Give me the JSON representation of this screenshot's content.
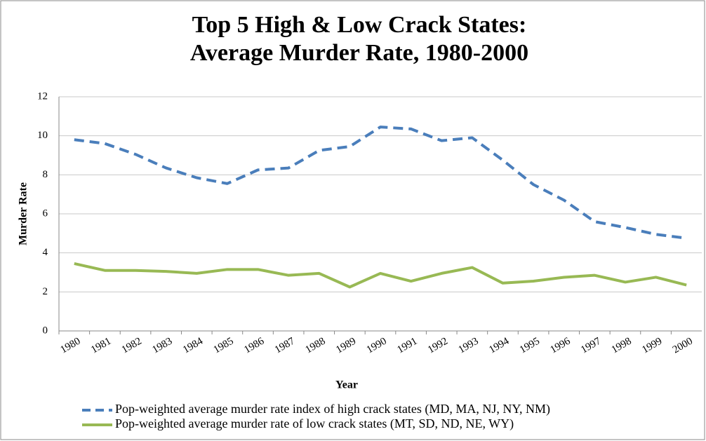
{
  "chart_data": {
    "type": "line",
    "title": [
      "Top 5 High & Low Crack States:",
      "Average Murder Rate, 1980-2000"
    ],
    "x_label": "Year",
    "y_label": "Murder Rate",
    "categories": [
      "1980",
      "1981",
      "1982",
      "1983",
      "1984",
      "1985",
      "1986",
      "1987",
      "1988",
      "1989",
      "1990",
      "1991",
      "1992",
      "1993",
      "1994",
      "1995",
      "1996",
      "1997",
      "1998",
      "1999",
      "2000"
    ],
    "series": [
      {
        "name": "Pop-weighted average murder rate index of high crack states (MD, MA, NJ, NY, NM)",
        "color": "#4a7ebb",
        "dash": true,
        "values": [
          9.8,
          9.6,
          9.05,
          8.35,
          7.85,
          7.55,
          8.25,
          8.35,
          9.25,
          9.45,
          10.45,
          10.35,
          9.75,
          9.9,
          8.75,
          7.5,
          6.7,
          5.6,
          5.3,
          4.95,
          4.75
        ]
      },
      {
        "name": "Pop-weighted average murder rate of low crack states (MT, SD, ND, NE, WY)",
        "color": "#98b954",
        "dash": false,
        "values": [
          3.45,
          3.1,
          3.1,
          3.05,
          2.95,
          3.15,
          3.15,
          2.85,
          2.95,
          2.25,
          2.95,
          2.55,
          2.95,
          3.25,
          2.45,
          2.55,
          2.75,
          2.85,
          2.5,
          2.75,
          2.35
        ]
      }
    ],
    "ylim": [
      0,
      12
    ],
    "yticks": [
      0,
      2,
      4,
      6,
      8,
      10,
      12
    ],
    "grid": true,
    "legend": "bottom"
  }
}
